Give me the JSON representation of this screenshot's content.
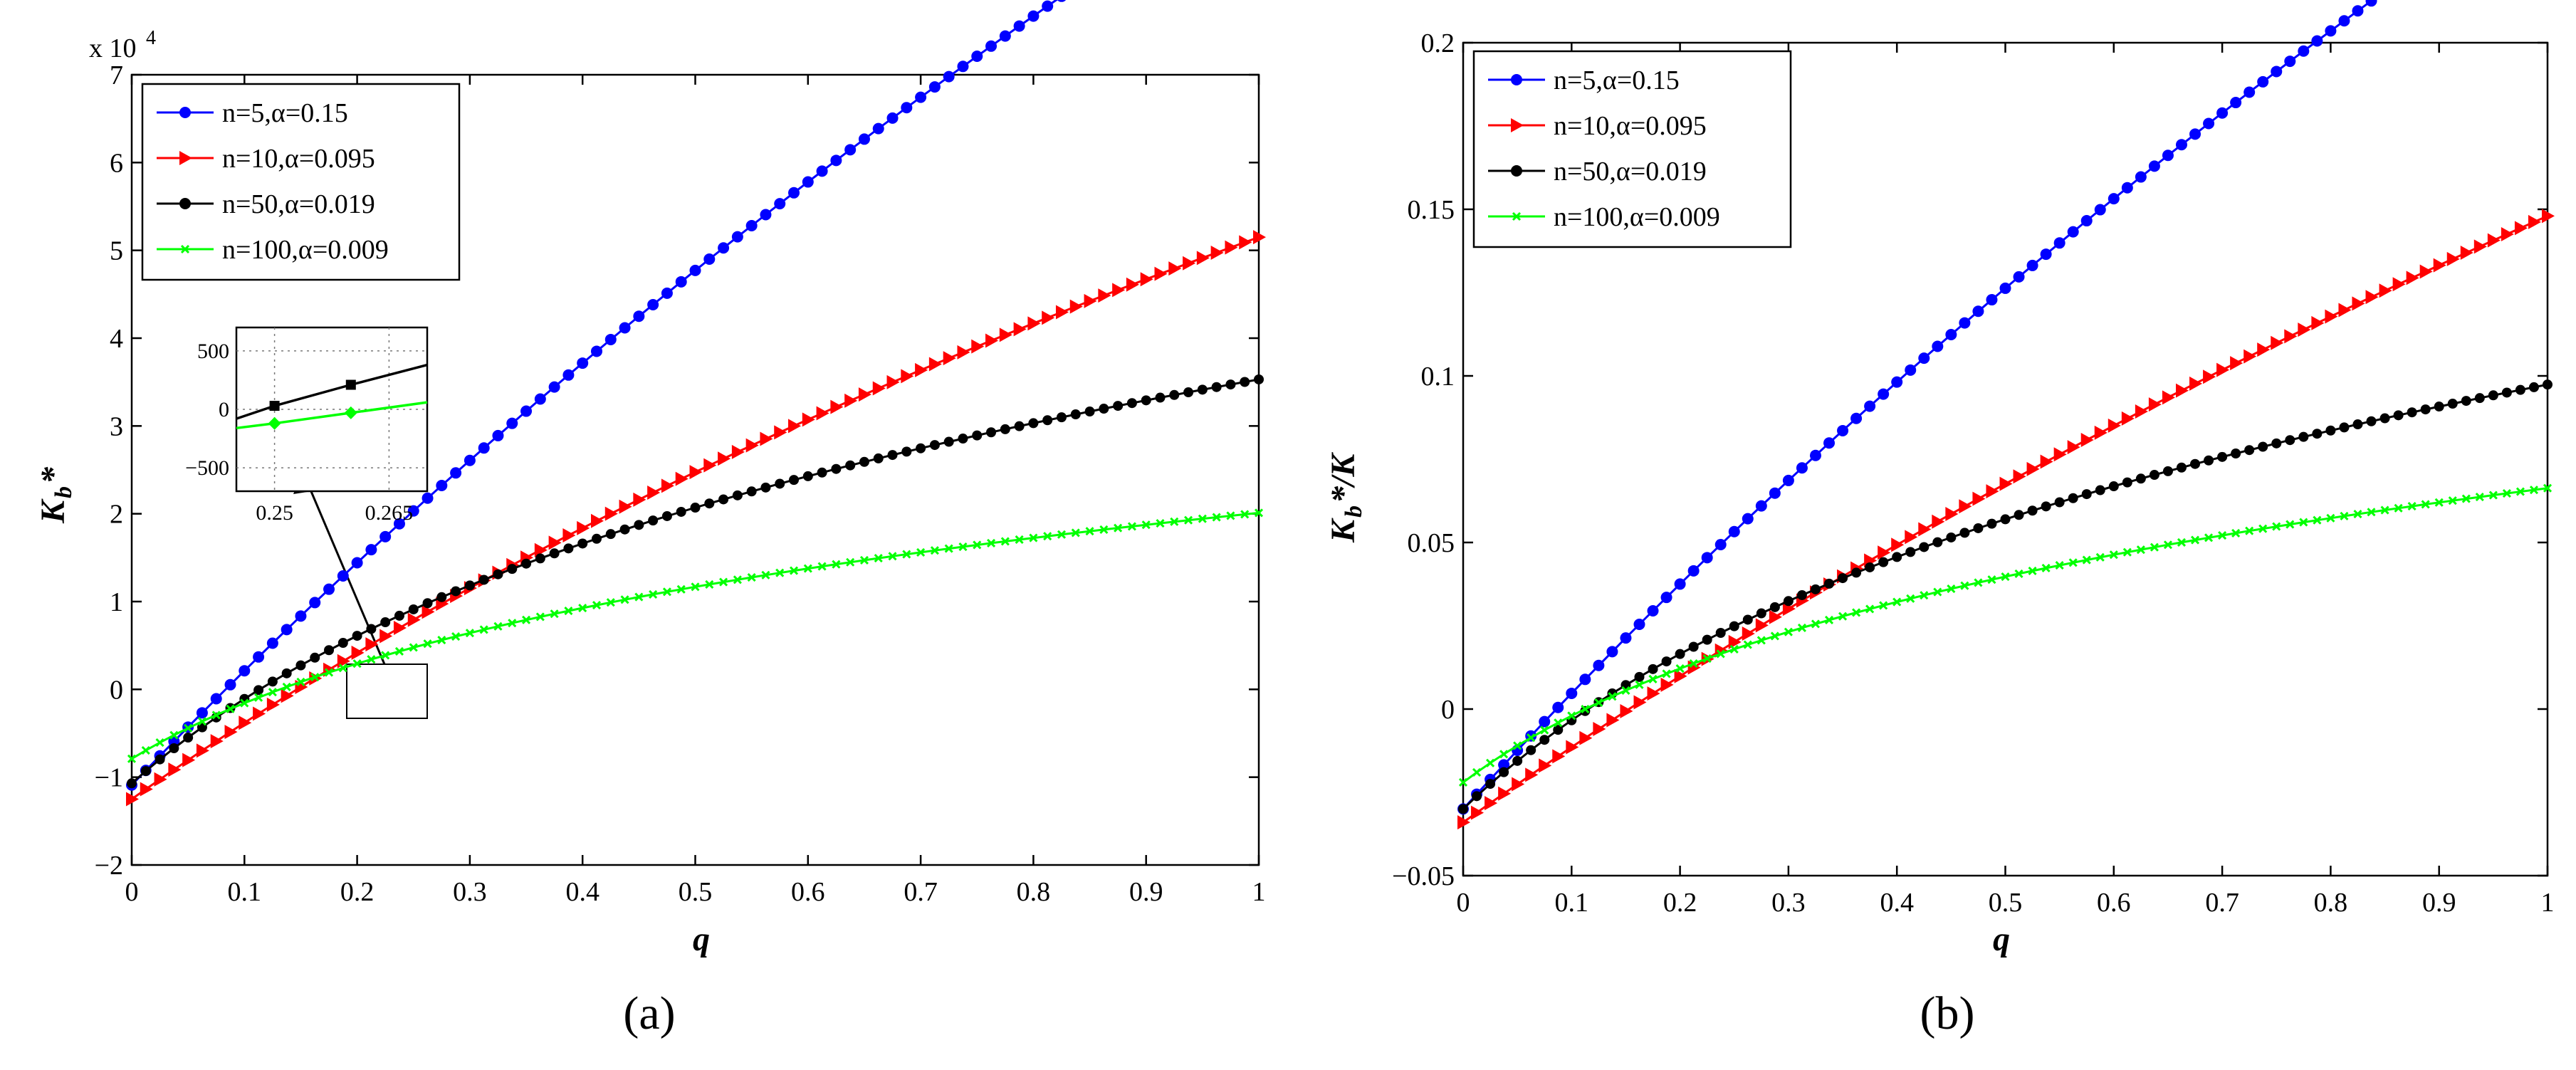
{
  "chart_data": [
    {
      "type": "line",
      "panel_label": "(a)",
      "xlabel": "q",
      "ylabel": "K",
      "ylabel_sub": "b",
      "ylabel_suffix": "*",
      "y_scale_label": "x 10",
      "y_scale_exp": "4",
      "xlim": [
        0,
        1
      ],
      "ylim": [
        -2,
        7
      ],
      "xticks": [
        "0",
        "0.1",
        "0.2",
        "0.3",
        "0.4",
        "0.5",
        "0.6",
        "0.7",
        "0.8",
        "0.9",
        "1"
      ],
      "yticks": [
        "−2",
        "−1",
        "0",
        "1",
        "2",
        "3",
        "4",
        "5",
        "6",
        "7"
      ],
      "series": [
        {
          "name": "n=5,α=0.15",
          "color": "#0000ff",
          "marker": "circle",
          "a": -1.09,
          "b": 10.5,
          "c": 0.6
        },
        {
          "name": "n=10,α=0.095",
          "color": "#ff0000",
          "marker": "triangle-right",
          "a": -1.25,
          "b": 6.4,
          "c": 0.95
        },
        {
          "name": "n=50,α=0.019",
          "color": "#000000",
          "marker": "circle",
          "a": -1.07,
          "b": 4.6,
          "c": 4.0
        },
        {
          "name": "n=100,α=0.009",
          "color": "#00ff00",
          "marker": "x",
          "a": -0.79,
          "b": 2.8,
          "c": 5.0
        }
      ],
      "inset": {
        "xlim": [
          0.245,
          0.27
        ],
        "ylim": [
          -700,
          700
        ],
        "xtick_labels": [
          "0.25",
          "0.265"
        ],
        "ytick_labels": [
          "500",
          "0",
          "−500"
        ],
        "series": [
          {
            "name": "n=50,α=0.019",
            "color": "#000000",
            "x": [
              0.245,
              0.25,
              0.26,
              0.27
            ],
            "y": [
              -80,
              30,
              210,
              380
            ]
          },
          {
            "name": "n=100,α=0.009",
            "color": "#00ff00",
            "x": [
              0.245,
              0.25,
              0.26,
              0.27
            ],
            "y": [
              -160,
              -120,
              -30,
              60
            ]
          }
        ],
        "markers": [
          {
            "series": 0,
            "x": 0.25,
            "y": 30
          },
          {
            "series": 0,
            "x": 0.26,
            "y": 210
          },
          {
            "series": 1,
            "x": 0.25,
            "y": -120
          },
          {
            "series": 1,
            "x": 0.26,
            "y": -30
          }
        ]
      }
    },
    {
      "type": "line",
      "panel_label": "(b)",
      "xlabel": "q",
      "ylabel": "K",
      "ylabel_sub": "b",
      "ylabel_suffix": "*/K",
      "xlim": [
        0,
        1
      ],
      "ylim": [
        -0.05,
        0.2
      ],
      "xticks": [
        "0",
        "0.1",
        "0.2",
        "0.3",
        "0.4",
        "0.5",
        "0.6",
        "0.7",
        "0.8",
        "0.9",
        "1"
      ],
      "yticks": [
        "−0.05",
        "0",
        "0.05",
        "0.1",
        "0.15",
        "0.2"
      ],
      "series": [
        {
          "name": "n=5,α=0.15",
          "color": "#0000ff",
          "marker": "circle",
          "a": -0.03,
          "b": 0.28,
          "c": 0.6
        },
        {
          "name": "n=10,α=0.095",
          "color": "#ff0000",
          "marker": "triangle-right",
          "a": -0.034,
          "b": 0.182,
          "c": 0.6
        },
        {
          "name": "n=50,α=0.019",
          "color": "#000000",
          "marker": "circle",
          "a": -0.03,
          "b": 0.1274,
          "c": 4.0
        },
        {
          "name": "n=100,α=0.009",
          "color": "#00ff00",
          "marker": "x",
          "a": -0.022,
          "b": 0.0883,
          "c": 5.0
        }
      ]
    }
  ]
}
